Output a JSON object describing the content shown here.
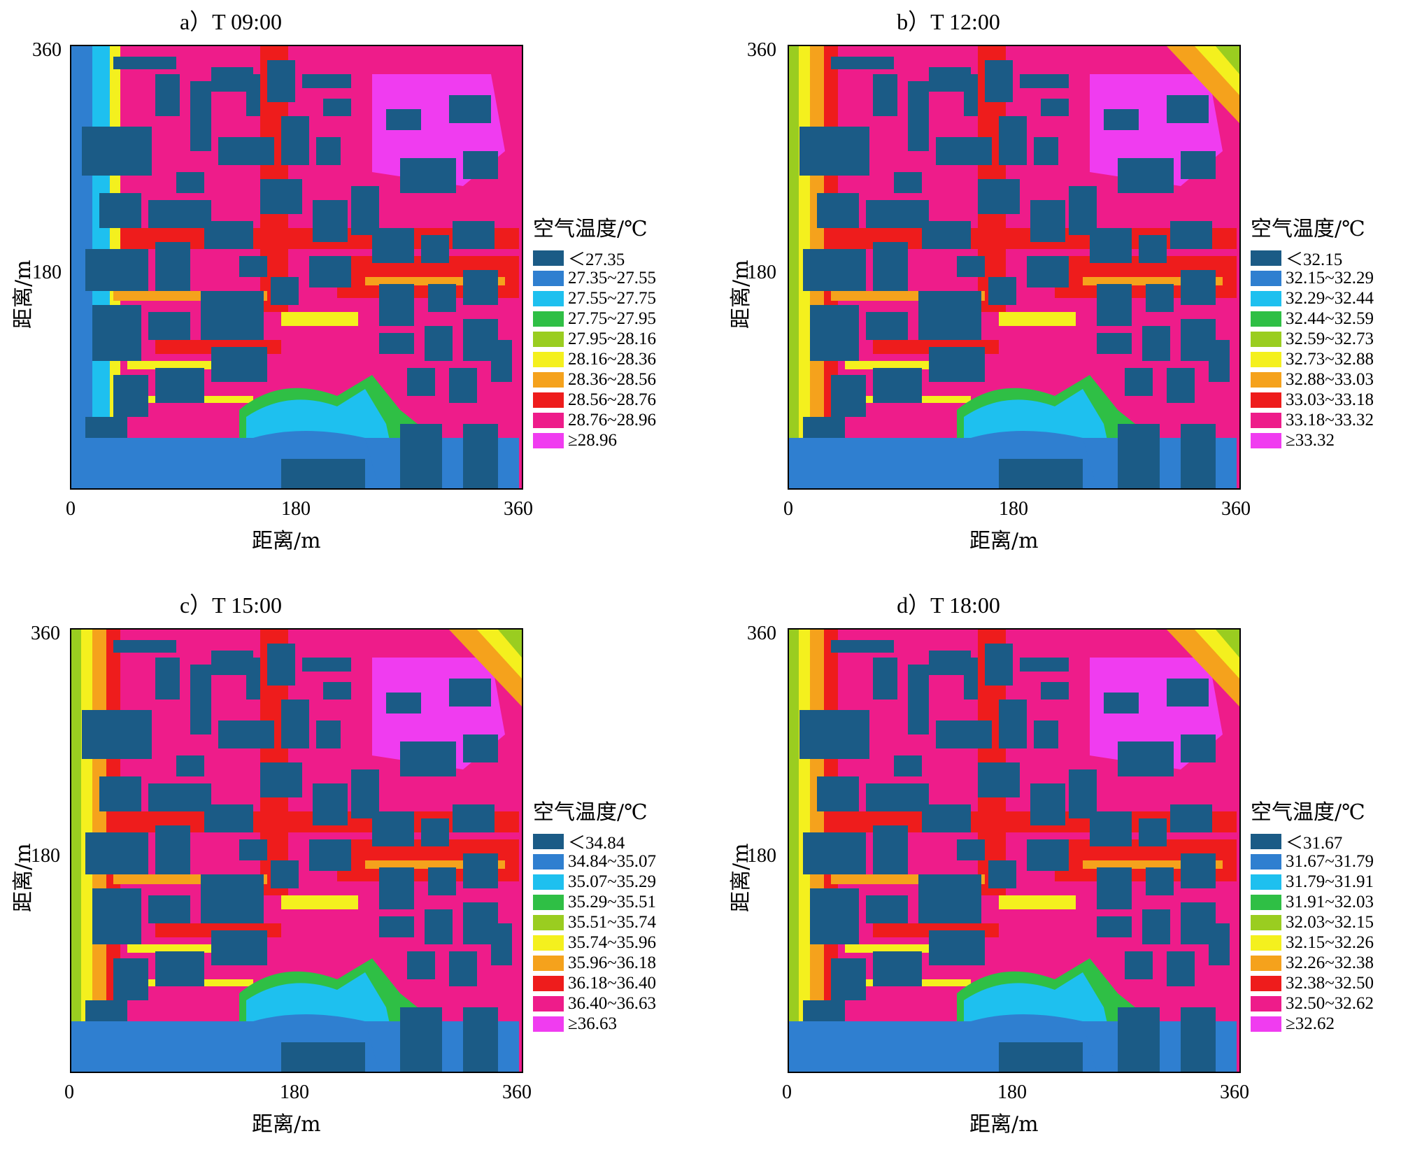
{
  "colors": [
    "#1b5b86",
    "#2f7fd0",
    "#1ec0ef",
    "#2fbf45",
    "#9acd20",
    "#f4f01e",
    "#f5a21c",
    "#ee1c1c",
    "#ee1c8a",
    "#f03cf0"
  ],
  "axis": {
    "xlabel": "距离/m",
    "ylabel": "距离/m",
    "ticks": [
      "0",
      "180",
      "360"
    ]
  },
  "legend_title": "空气温度/℃",
  "chart_data": [
    {
      "type": "heatmap",
      "title": "a）T 09:00",
      "xlabel": "距离/m",
      "ylabel": "距离/m",
      "xlim": [
        0,
        360
      ],
      "ylim": [
        0,
        360
      ],
      "x_ticks": [
        "0",
        "180",
        "360"
      ],
      "y_ticks": [
        "180",
        "360"
      ],
      "legend_title": "空气温度/℃",
      "legend": [
        "＜27.35",
        "27.35~27.55",
        "27.55~27.75",
        "27.75~27.95",
        "27.95~28.16",
        "28.16~28.36",
        "28.36~28.56",
        "28.56~28.76",
        "28.76~28.96",
        "≥28.96"
      ],
      "grid": false,
      "legend_position": "right"
    },
    {
      "type": "heatmap",
      "title": "b）T 12:00",
      "xlabel": "距离/m",
      "ylabel": "距离/m",
      "xlim": [
        0,
        360
      ],
      "ylim": [
        0,
        360
      ],
      "x_ticks": [
        "0",
        "180",
        "360"
      ],
      "y_ticks": [
        "180",
        "360"
      ],
      "legend_title": "空气温度/℃",
      "legend": [
        "＜32.15",
        "32.15~32.29",
        "32.29~32.44",
        "32.44~32.59",
        "32.59~32.73",
        "32.73~32.88",
        "32.88~33.03",
        "33.03~33.18",
        "33.18~33.32",
        "≥33.32"
      ],
      "grid": false,
      "legend_position": "right"
    },
    {
      "type": "heatmap",
      "title": "c）T 15:00",
      "xlabel": "距离/m",
      "ylabel": "距离/m",
      "xlim": [
        0,
        360
      ],
      "ylim": [
        0,
        360
      ],
      "x_ticks": [
        "0",
        "180",
        "360"
      ],
      "y_ticks": [
        "180",
        "360"
      ],
      "legend_title": "空气温度/℃",
      "legend": [
        "＜34.84",
        "34.84~35.07",
        "35.07~35.29",
        "35.29~35.51",
        "35.51~35.74",
        "35.74~35.96",
        "35.96~36.18",
        "36.18~36.40",
        "36.40~36.63",
        "≥36.63"
      ],
      "grid": false,
      "legend_position": "right"
    },
    {
      "type": "heatmap",
      "title": "d）T 18:00",
      "xlabel": "距离/m",
      "ylabel": "距离/m",
      "xlim": [
        0,
        360
      ],
      "ylim": [
        0,
        360
      ],
      "x_ticks": [
        "0",
        "180",
        "360"
      ],
      "y_ticks": [
        "180",
        "360"
      ],
      "legend_title": "空气温度/℃",
      "legend": [
        "＜31.67",
        "31.67~31.79",
        "31.79~31.91",
        "31.91~32.03",
        "32.03~32.15",
        "32.15~32.26",
        "32.26~32.38",
        "32.38~32.50",
        "32.50~32.62",
        "≥32.62"
      ],
      "grid": false,
      "legend_position": "right"
    }
  ]
}
